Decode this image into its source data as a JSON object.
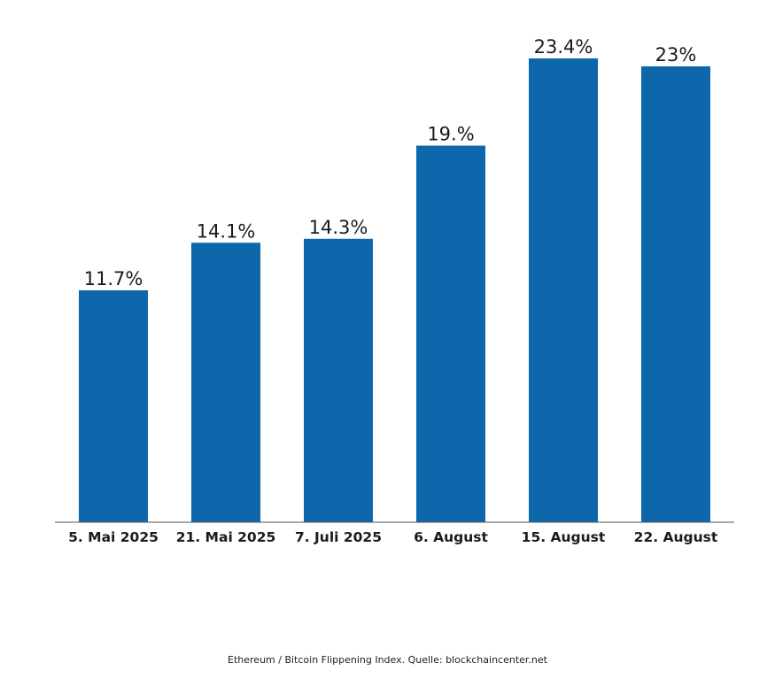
{
  "chart_data": {
    "type": "bar",
    "categories": [
      "5. Mai 2025",
      "21. Mai 2025",
      "7. Juli 2025",
      "6. August",
      "15. August",
      "22. August"
    ],
    "values": [
      11.7,
      14.1,
      14.3,
      19.0,
      23.4,
      23.0
    ],
    "data_labels": [
      "11.7%",
      "14.1%",
      "14.3%",
      "19.%",
      "23.4%",
      "23%"
    ],
    "title": "",
    "xlabel": "",
    "ylabel": "",
    "ylim": [
      0,
      23.4
    ],
    "grid": false,
    "legend": "none",
    "bar_color": "#0d67aa",
    "axis_color": "#555555"
  },
  "caption": "Ethereum / Bitcoin Flippening Index. Quelle: blockchaincenter.net"
}
